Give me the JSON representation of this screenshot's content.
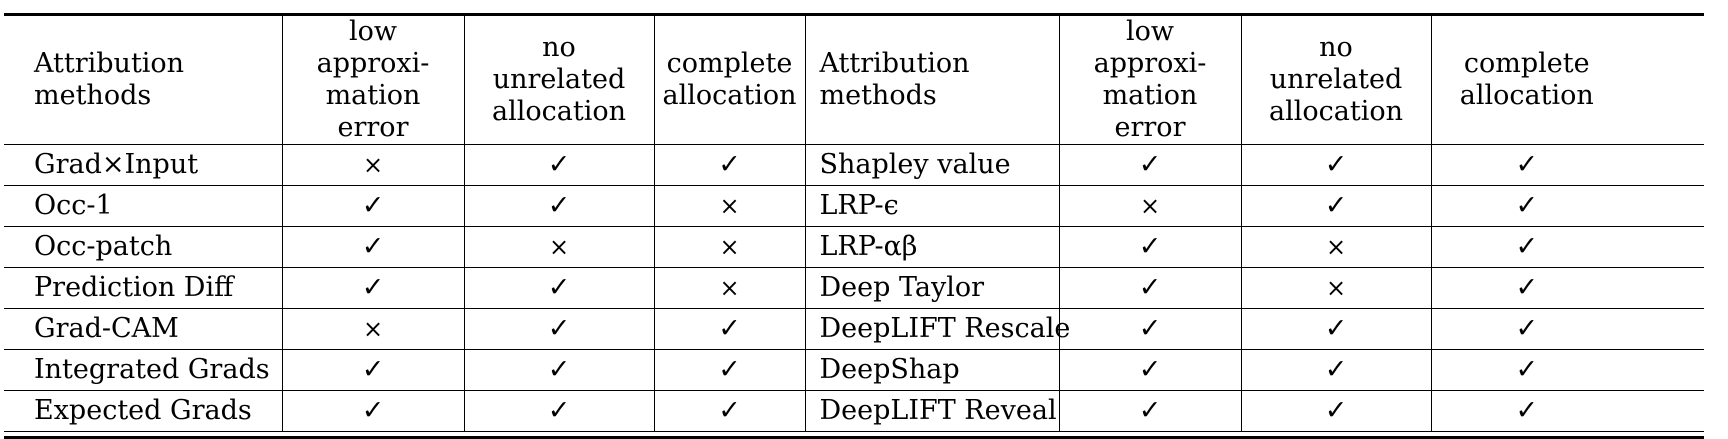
{
  "table": {
    "headers": [
      [
        "Attribution",
        "methods"
      ],
      [
        "low approxi-",
        "mation error"
      ],
      [
        "no unrelated",
        "allocation"
      ],
      [
        "complete",
        "allocation"
      ],
      [
        "Attribution",
        "methods"
      ],
      [
        "low approxi-",
        "mation error"
      ],
      [
        "no unrelated",
        "allocation"
      ],
      [
        "complete",
        "allocation"
      ]
    ],
    "rows": [
      [
        "Grad×Input",
        "×",
        "✓",
        "✓",
        "Shapley value",
        "✓",
        "✓",
        "✓"
      ],
      [
        "Occ-1",
        "✓",
        "✓",
        "×",
        "LRP-ϵ",
        "×",
        "✓",
        "✓"
      ],
      [
        "Occ-patch",
        "✓",
        "×",
        "×",
        "LRP-αβ",
        "✓",
        "×",
        "✓"
      ],
      [
        "Prediction Diff",
        "✓",
        "✓",
        "×",
        "Deep Taylor",
        "✓",
        "×",
        "✓"
      ],
      [
        "Grad-CAM",
        "×",
        "✓",
        "✓",
        "DeepLIFT Rescale",
        "✓",
        "✓",
        "✓"
      ],
      [
        "Integrated Grads",
        "✓",
        "✓",
        "✓",
        "DeepShap",
        "✓",
        "✓",
        "✓"
      ],
      [
        "Expected Grads",
        "✓",
        "✓",
        "✓",
        "DeepLIFT Reveal",
        "✓",
        "✓",
        "✓"
      ]
    ]
  }
}
